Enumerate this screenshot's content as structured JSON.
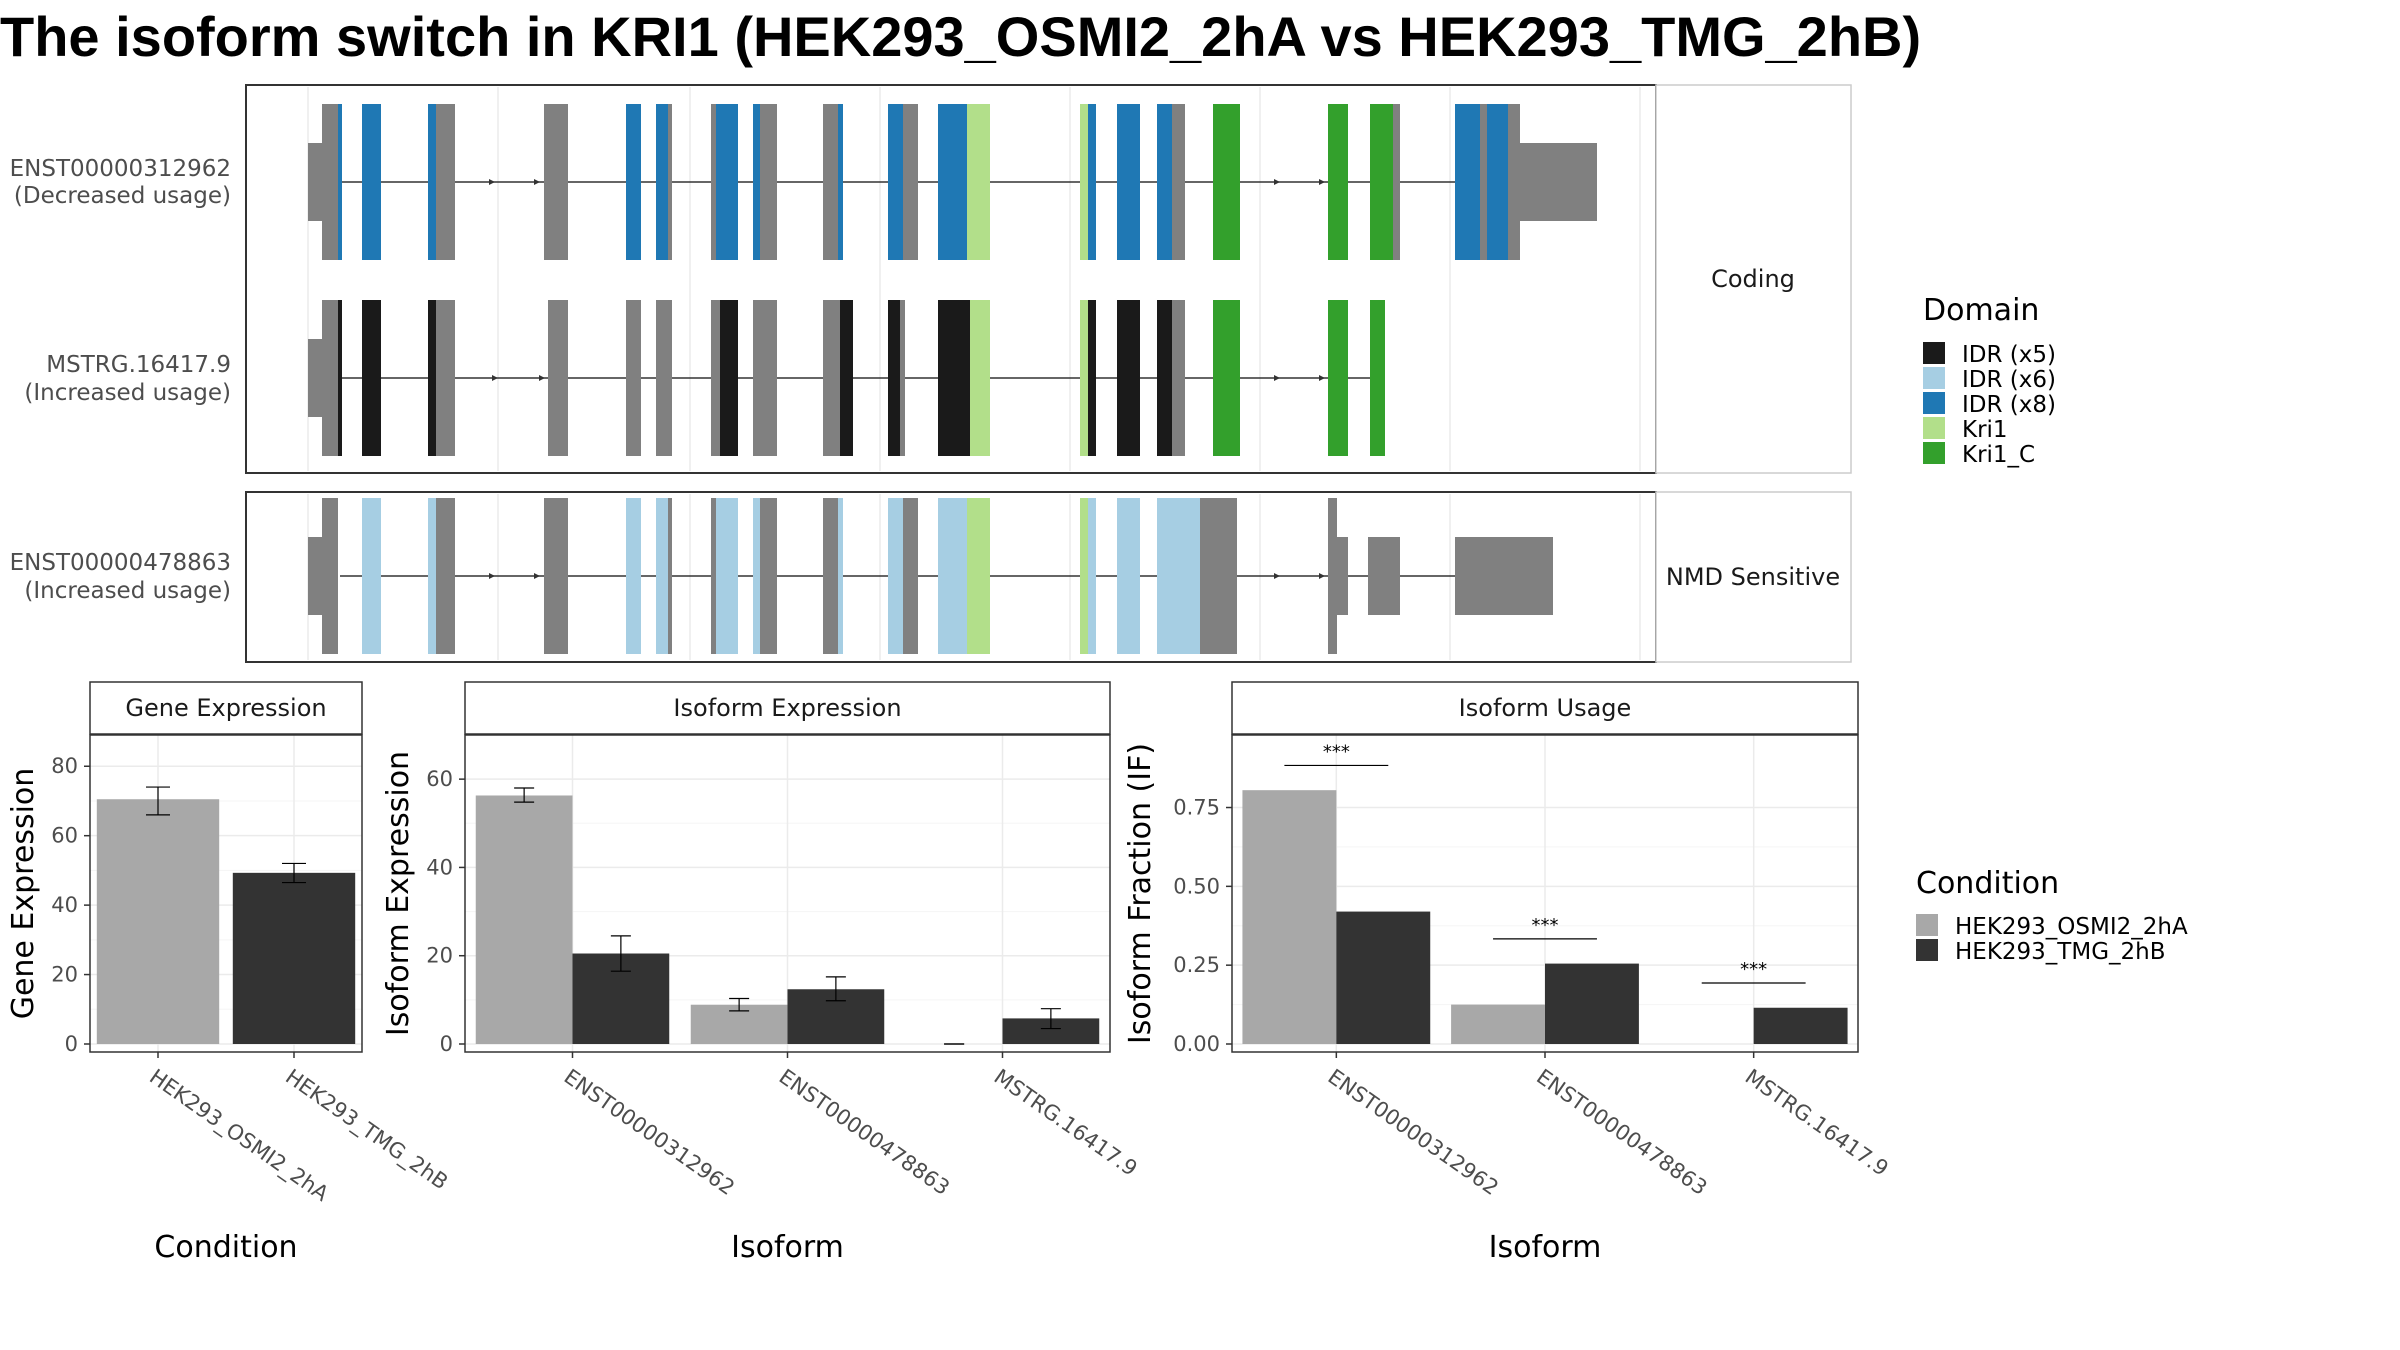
{
  "title": "The isoform switch in KRI1 (HEK293_OSMI2_2hA vs HEK293_TMG_2hB)",
  "colors": {
    "utr_grey": "#808080",
    "idr_x5": "#1a1a1a",
    "idr_x6": "#a6cee3",
    "idr_x8": "#1f78b4",
    "kri1": "#b2df8a",
    "kri1_c": "#33a02c",
    "cond_a": "#a8a8a8",
    "cond_b": "#333333"
  },
  "domain_legend": {
    "title": "Domain",
    "items": [
      {
        "label": "IDR (x5)",
        "color": "#1a1a1a"
      },
      {
        "label": "IDR (x6)",
        "color": "#a6cee3"
      },
      {
        "label": "IDR (x8)",
        "color": "#1f78b4"
      },
      {
        "label": "Kri1",
        "color": "#b2df8a"
      },
      {
        "label": "Kri1_C",
        "color": "#33a02c"
      }
    ]
  },
  "condition_legend": {
    "title": "Condition",
    "items": [
      {
        "label": "HEK293_OSMI2_2hA",
        "color": "#a8a8a8"
      },
      {
        "label": "HEK293_TMG_2hB",
        "color": "#333333"
      }
    ]
  },
  "transcripts": {
    "coding_panel_label": "Coding",
    "nmd_panel_label": "NMD Sensitive",
    "rows": [
      {
        "id": "ENST00000312962",
        "usage": "(Decreased usage)",
        "category": "Coding"
      },
      {
        "id": "MSTRG.16417.9",
        "usage": "(Increased usage)",
        "category": "Coding"
      },
      {
        "id": "ENST00000478863",
        "usage": "(Increased usage)",
        "category": "NMD Sensitive"
      }
    ]
  },
  "chart_data": [
    {
      "type": "bar",
      "title": "Gene Expression",
      "xlabel": "Condition",
      "ylabel": "Gene Expression",
      "categories": [
        "HEK293_OSMI2_2hA",
        "HEK293_TMG_2hB"
      ],
      "values": [
        70.5,
        49.3
      ],
      "error_low": [
        66.0,
        46.5
      ],
      "error_high": [
        74.0,
        52.0
      ],
      "ylim": [
        0,
        89
      ],
      "yticks": [
        0,
        20,
        40,
        60,
        80
      ],
      "grid": true
    },
    {
      "type": "bar",
      "title": "Isoform Expression",
      "xlabel": "Isoform",
      "ylabel": "Isoform Expression",
      "categories": [
        "ENST00000312962",
        "ENST00000478863",
        "MSTRG.16417.9"
      ],
      "series": [
        {
          "name": "HEK293_OSMI2_2hA",
          "values": [
            56.3,
            8.9,
            0.0
          ],
          "error_low": [
            54.8,
            7.5,
            0.0
          ],
          "error_high": [
            58.0,
            10.3,
            0.0
          ]
        },
        {
          "name": "HEK293_TMG_2hB",
          "values": [
            20.5,
            12.4,
            5.8
          ],
          "error_low": [
            16.5,
            9.8,
            3.5
          ],
          "error_high": [
            24.5,
            15.2,
            8.0
          ]
        }
      ],
      "ylim": [
        0,
        70
      ],
      "yticks": [
        0,
        20,
        40,
        60
      ],
      "grid": true
    },
    {
      "type": "bar",
      "title": "Isoform Usage",
      "xlabel": "Isoform",
      "ylabel": "Isoform Fraction (IF)",
      "categories": [
        "ENST00000312962",
        "ENST00000478863",
        "MSTRG.16417.9"
      ],
      "series": [
        {
          "name": "HEK293_OSMI2_2hA",
          "values": [
            0.805,
            0.125,
            0.0
          ]
        },
        {
          "name": "HEK293_TMG_2hB",
          "values": [
            0.42,
            0.255,
            0.115
          ]
        }
      ],
      "significance": [
        "***",
        "***",
        "***"
      ],
      "ylim": [
        0,
        0.98
      ],
      "yticks": [
        0.0,
        0.25,
        0.5,
        0.75
      ],
      "ytick_labels": [
        "0.00",
        "0.25",
        "0.50",
        "0.75"
      ],
      "grid": true
    }
  ]
}
